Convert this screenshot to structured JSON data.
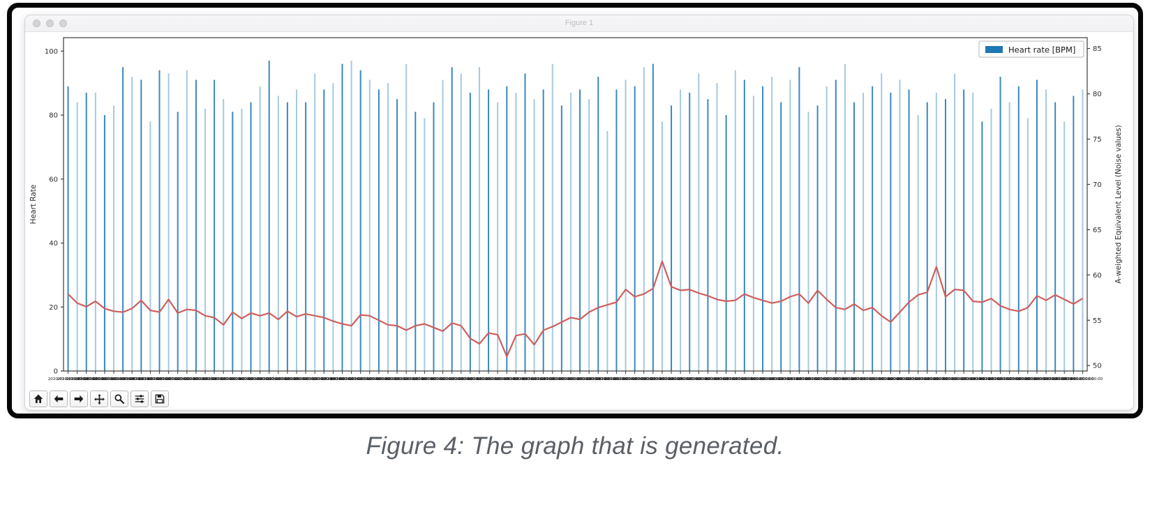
{
  "window": {
    "title": "Figure 1"
  },
  "toolbar": {
    "buttons": [
      {
        "name": "home"
      },
      {
        "name": "back"
      },
      {
        "name": "forward"
      },
      {
        "name": "pan"
      },
      {
        "name": "zoom"
      },
      {
        "name": "configure-subplots"
      },
      {
        "name": "save"
      }
    ]
  },
  "caption": "Figure 4: The graph that is generated.",
  "chart_data": {
    "type": "bar",
    "subtype": "bar series on left axis + line series on right axis (twin y-axes)",
    "title": "",
    "grid": false,
    "legend": [
      {
        "label": "Heart rate [BPM]",
        "color": "#1f77b4",
        "position": "upper right"
      }
    ],
    "left_axis": {
      "label": "Heart Rate",
      "ticks": [
        0,
        20,
        40,
        60,
        80,
        100
      ],
      "ylim": [
        0,
        104.2
      ]
    },
    "right_axis": {
      "label": "A-weighted Equivalent Level (Noise values)",
      "ticks": [
        50,
        55,
        60,
        65,
        70,
        75,
        80,
        85
      ],
      "ylim": [
        49.4,
        86.2
      ]
    },
    "x_axis": {
      "visible_left_fragment": "2020",
      "visible_right_fragment": "000000",
      "tick_label_repeat_text": "2020-01-0100:00:00",
      "appearance": "dense overlapping unreadable datetime tick labels"
    },
    "series": [
      {
        "name": "Heart rate [BPM]",
        "type": "bar",
        "axis": "left",
        "color": "#1f77b4",
        "values": [
          89,
          84,
          87,
          87,
          80,
          83,
          95,
          92,
          91,
          78,
          94,
          93,
          81,
          94,
          91,
          82,
          91,
          85,
          81,
          82,
          84,
          89,
          97,
          86,
          84,
          88,
          84,
          93,
          88,
          90,
          96,
          97,
          94,
          91,
          88,
          90,
          85,
          96,
          81,
          79,
          84,
          91,
          95,
          93,
          87,
          95,
          88,
          84,
          89,
          87,
          93,
          85,
          88,
          96,
          83,
          87,
          88,
          85,
          92,
          75,
          88,
          91,
          89,
          95,
          96,
          78,
          83,
          88,
          87,
          93,
          85,
          90,
          80,
          94,
          91,
          86,
          89,
          92,
          84,
          91,
          95,
          81,
          83,
          89,
          91,
          96,
          84,
          87,
          89,
          93,
          87,
          91,
          88,
          80,
          84,
          87,
          85,
          93,
          88,
          87,
          78,
          82,
          92,
          84,
          89,
          79,
          91,
          88,
          84,
          78,
          86,
          88
        ]
      },
      {
        "name": "A-weighted Equivalent Level (Noise values)",
        "type": "line",
        "axis": "right",
        "color": "#cd5f5c",
        "values": [
          57.9,
          56.9,
          56.5,
          57.1,
          56.3,
          56.0,
          55.9,
          56.3,
          57.2,
          56.1,
          55.9,
          57.3,
          55.8,
          56.2,
          56.1,
          55.5,
          55.3,
          54.5,
          55.9,
          55.2,
          55.8,
          55.5,
          55.8,
          55.1,
          56.0,
          55.4,
          55.7,
          55.5,
          55.3,
          54.9,
          54.6,
          54.4,
          55.6,
          55.5,
          55.0,
          54.5,
          54.4,
          53.9,
          54.4,
          54.6,
          54.2,
          53.8,
          54.7,
          54.4,
          53.0,
          52.4,
          53.6,
          53.4,
          51.0,
          53.3,
          53.5,
          52.3,
          53.9,
          54.3,
          54.8,
          55.3,
          55.1,
          55.9,
          56.4,
          56.7,
          57.0,
          58.4,
          57.6,
          57.9,
          58.5,
          61.5,
          58.7,
          58.3,
          58.4,
          58.0,
          57.7,
          57.3,
          57.1,
          57.2,
          57.9,
          57.5,
          57.2,
          56.9,
          57.1,
          57.6,
          57.9,
          56.9,
          58.3,
          57.3,
          56.4,
          56.2,
          56.8,
          56.1,
          56.4,
          55.5,
          54.8,
          55.9,
          57.0,
          57.8,
          58.1,
          60.9,
          57.6,
          58.4,
          58.3,
          57.1,
          57.0,
          57.4,
          56.6,
          56.2,
          56.0,
          56.4,
          57.7,
          57.2,
          57.8,
          57.3,
          56.8,
          57.4
        ]
      }
    ],
    "style": {
      "spine_color": "#3a3a3a",
      "tick_label_color": "#2b2b2b",
      "bar_alt_opacity": [
        0.88,
        0.4
      ]
    }
  }
}
